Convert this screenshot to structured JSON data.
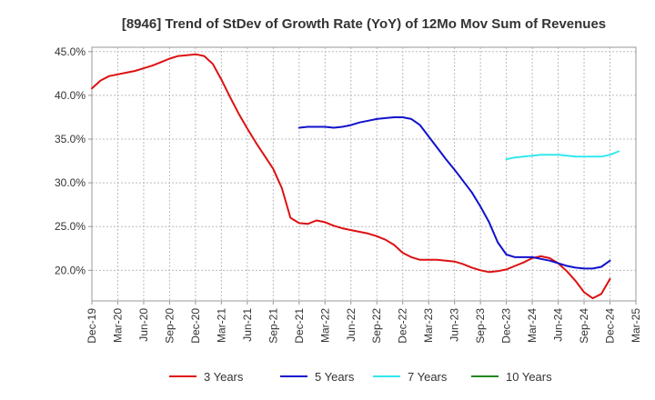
{
  "chart_data": {
    "type": "line",
    "title": "[8946]  Trend of StDev of Growth Rate (YoY) of 12Mo Mov Sum of Revenues",
    "xlabel": "",
    "ylabel": "",
    "ylim": [
      16.5,
      45.5
    ],
    "yticks": [
      20,
      25,
      30,
      35,
      40,
      45
    ],
    "ytick_labels": [
      "20.0%",
      "25.0%",
      "30.0%",
      "35.0%",
      "40.0%",
      "45.0%"
    ],
    "x_start": "Dec-19",
    "x_months": 63,
    "xticks": [
      0,
      3,
      6,
      9,
      12,
      15,
      18,
      21,
      24,
      27,
      30,
      33,
      36,
      39,
      42,
      45,
      48,
      51,
      54,
      57,
      60,
      63
    ],
    "xtick_labels": [
      "Dec-19",
      "Mar-20",
      "Jun-20",
      "Sep-20",
      "Dec-20",
      "Mar-21",
      "Jun-21",
      "Sep-21",
      "Dec-21",
      "Mar-22",
      "Jun-22",
      "Sep-22",
      "Dec-22",
      "Mar-23",
      "Jun-23",
      "Sep-23",
      "Dec-23",
      "Mar-24",
      "Jun-24",
      "Sep-24",
      "Dec-24",
      "Mar-25"
    ],
    "grid": true,
    "legend_position": "bottom",
    "series": [
      {
        "name": "3 Years",
        "color": "#dd1111",
        "start": 0,
        "values": [
          40.8,
          41.7,
          42.2,
          42.4,
          42.6,
          42.8,
          43.1,
          43.4,
          43.8,
          44.2,
          44.5,
          44.6,
          44.7,
          44.5,
          43.6,
          41.8,
          39.8,
          37.9,
          36.2,
          34.6,
          33.1,
          31.6,
          29.4,
          26.0,
          25.4,
          25.3,
          25.7,
          25.5,
          25.1,
          24.8,
          24.6,
          24.4,
          24.2,
          23.9,
          23.5,
          22.9,
          22.0,
          21.5,
          21.2,
          21.2,
          21.2,
          21.1,
          21.0,
          20.7,
          20.3,
          20.0,
          19.8,
          19.9,
          20.1,
          20.5,
          20.9,
          21.4,
          21.6,
          21.4,
          20.8,
          19.9,
          18.8,
          17.5,
          16.8,
          17.3,
          19.0
        ]
      },
      {
        "name": "5 Years",
        "color": "#1111cc",
        "start": 24,
        "values": [
          36.3,
          36.4,
          36.4,
          36.4,
          36.3,
          36.4,
          36.6,
          36.9,
          37.1,
          37.3,
          37.4,
          37.5,
          37.5,
          37.3,
          36.6,
          35.3,
          34.0,
          32.7,
          31.5,
          30.2,
          28.9,
          27.3,
          25.5,
          23.2,
          21.8,
          21.5,
          21.5,
          21.5,
          21.3,
          21.1,
          20.8,
          20.5,
          20.3,
          20.2,
          20.2,
          20.4,
          21.1
        ]
      },
      {
        "name": "7 Years",
        "color": "#33e8ee",
        "start": 48,
        "values": [
          32.7,
          32.9,
          33.0,
          33.1,
          33.2,
          33.2,
          33.2,
          33.1,
          33.0,
          33.0,
          33.0,
          33.0,
          33.2,
          33.6
        ]
      },
      {
        "name": "10 Years",
        "color": "#228822",
        "start": 0,
        "values": []
      }
    ]
  }
}
